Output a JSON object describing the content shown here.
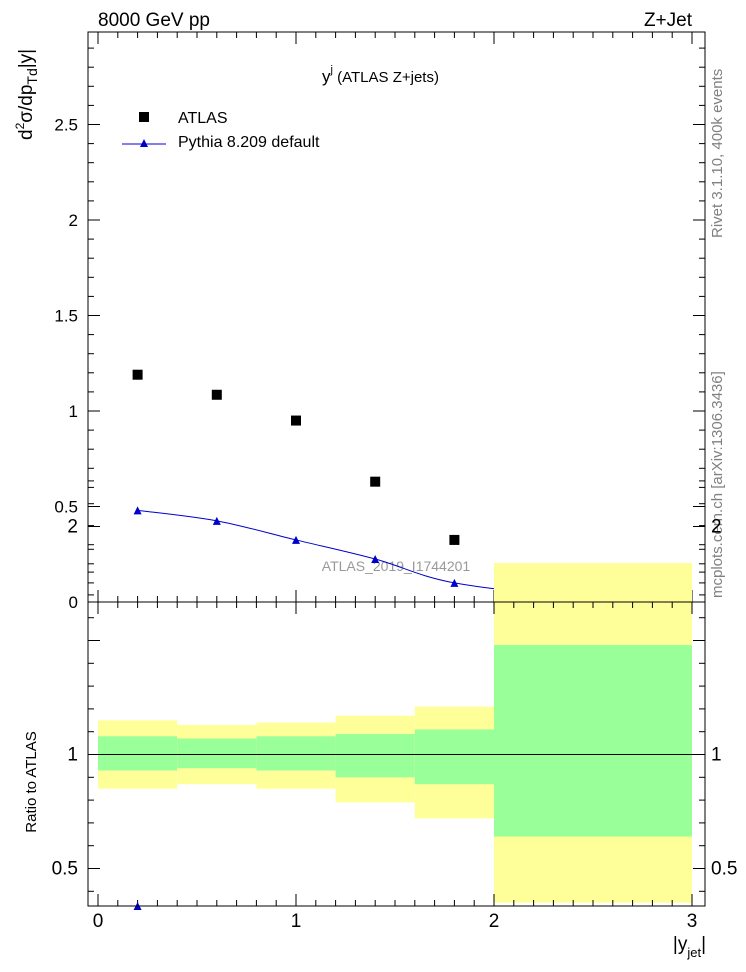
{
  "header": {
    "left": "8000 GeV pp",
    "right": "Z+Jet"
  },
  "side_texts": {
    "rivet": "Rivet 3.1.10,  400k events",
    "mcplots": "mcplots.cern.ch [arXiv:1306.3436]"
  },
  "colors": {
    "data": "#000000",
    "mc": "#0000cc",
    "band_outer": "#ffff99",
    "band_inner": "#99ff99"
  },
  "chart_data": [
    {
      "type": "scatter",
      "title_main": "y",
      "title_sup": "j",
      "title_rest": " (ATLAS Z+jets)",
      "ylabel": "d²σ/dp_Td|y|",
      "watermark": "ATLAS_2019_I1744201",
      "ylim": [
        0,
        3.0
      ],
      "xlim": [
        -0.05,
        3.05
      ],
      "yticks": [
        {
          "v": 0.5,
          "label": "0.5"
        },
        {
          "v": 1.0,
          "label": "1"
        },
        {
          "v": 1.5,
          "label": "1.5"
        },
        {
          "v": 2.0,
          "label": "2"
        },
        {
          "v": 2.5,
          "label": "2.5"
        }
      ],
      "y_zero_label": "0",
      "legend": [
        {
          "name": "ATLAS",
          "marker": "square"
        },
        {
          "name": "Pythia 8.209 default",
          "marker": "triangle"
        }
      ],
      "series": [
        {
          "name": "ATLAS",
          "x": [
            0.2,
            0.6,
            1.0,
            1.4,
            1.8,
            2.5
          ],
          "values": [
            1.19,
            1.085,
            0.95,
            0.63,
            0.325,
            0.035
          ]
        },
        {
          "name": "Pythia 8.209 default",
          "x": [
            0.2,
            0.6,
            1.0,
            1.4,
            1.8,
            2.5
          ],
          "values": [
            0.48,
            0.425,
            0.325,
            0.225,
            0.1,
            0.01
          ]
        }
      ]
    },
    {
      "type": "area",
      "ylabel": "Ratio to ATLAS",
      "xlabel": "|y",
      "xlabel_sub": "jet",
      "xlabel_end": "|",
      "ylim": [
        0.35,
        2.25
      ],
      "xlim": [
        -0.05,
        3.05
      ],
      "xticks": [
        {
          "v": 0,
          "label": "0"
        },
        {
          "v": 1,
          "label": "1"
        },
        {
          "v": 2,
          "label": "2"
        },
        {
          "v": 3,
          "label": "3"
        }
      ],
      "yticks": [
        {
          "v": 0.5,
          "label": "0.5"
        },
        {
          "v": 1,
          "label": "1"
        },
        {
          "v": 2,
          "label": "2"
        }
      ],
      "bins": [
        {
          "lo": 0.0,
          "hi": 0.4,
          "outer": [
            0.85,
            1.15
          ],
          "inner": [
            0.93,
            1.08
          ]
        },
        {
          "lo": 0.4,
          "hi": 0.8,
          "outer": [
            0.87,
            1.13
          ],
          "inner": [
            0.94,
            1.07
          ]
        },
        {
          "lo": 0.8,
          "hi": 1.2,
          "outer": [
            0.85,
            1.14
          ],
          "inner": [
            0.93,
            1.08
          ]
        },
        {
          "lo": 1.2,
          "hi": 1.6,
          "outer": [
            0.79,
            1.17
          ],
          "inner": [
            0.9,
            1.09
          ]
        },
        {
          "lo": 1.6,
          "hi": 2.0,
          "outer": [
            0.72,
            1.21
          ],
          "inner": [
            0.87,
            1.11
          ]
        },
        {
          "lo": 2.0,
          "hi": 3.0,
          "outer": [
            0.35,
            1.84
          ],
          "inner": [
            0.64,
            1.48
          ]
        }
      ],
      "mc_ratio": {
        "x": [
          0.2
        ],
        "values": [
          0.35
        ]
      }
    }
  ]
}
